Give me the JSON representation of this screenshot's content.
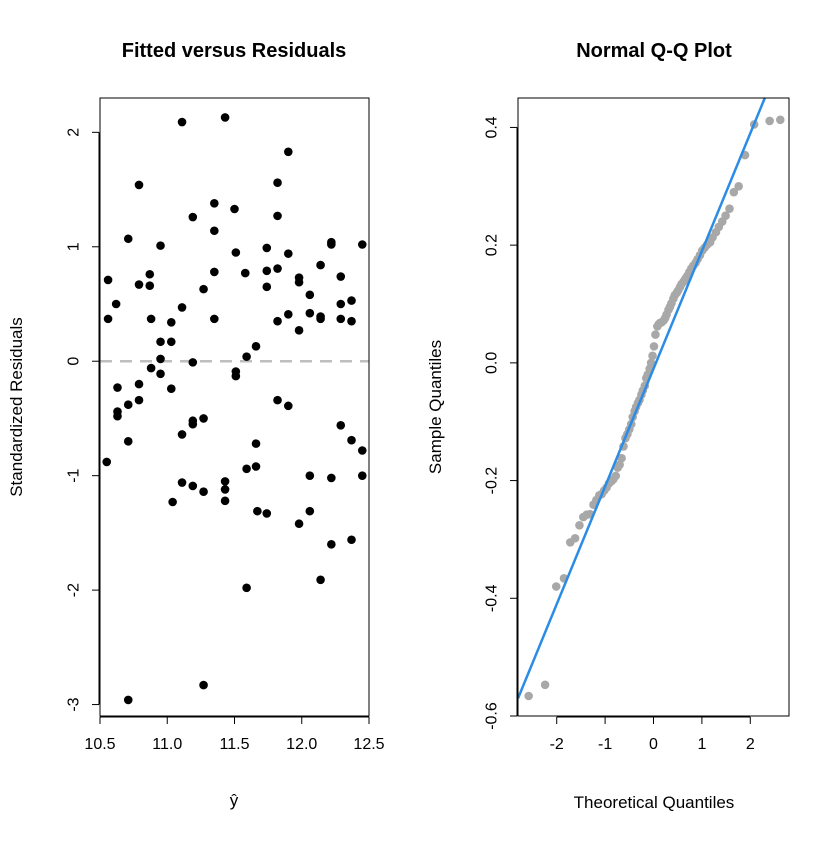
{
  "chart_data": [
    {
      "type": "scatter",
      "title": "Fitted versus Residuals",
      "xlabel": "ŷ",
      "ylabel": "Standardized Residuals",
      "xlim": [
        10.5,
        12.5
      ],
      "ylim": [
        -3.1,
        2.3
      ],
      "x_ticks": [
        10.5,
        11.0,
        11.5,
        12.0,
        12.5
      ],
      "x_tick_labels": [
        "10.5",
        "11.0",
        "11.5",
        "12.0",
        "12.5"
      ],
      "y_ticks": [
        -3,
        -2,
        -1,
        0,
        1,
        2
      ],
      "y_tick_labels": [
        "-3",
        "-2",
        "-1",
        "0",
        "1",
        "2"
      ],
      "reference_line": {
        "y": 0,
        "style": "dashed",
        "color": "#bebebe"
      },
      "point_color": "#000000",
      "points": [
        [
          10.56,
          0.71
        ],
        [
          10.56,
          0.37
        ],
        [
          10.55,
          -0.88
        ],
        [
          10.62,
          0.5
        ],
        [
          10.63,
          -0.23
        ],
        [
          10.63,
          -0.44
        ],
        [
          10.63,
          -0.48
        ],
        [
          10.71,
          1.07
        ],
        [
          10.71,
          -0.38
        ],
        [
          10.71,
          -0.7
        ],
        [
          10.71,
          -2.96
        ],
        [
          10.79,
          1.54
        ],
        [
          10.79,
          0.67
        ],
        [
          10.79,
          -0.2
        ],
        [
          10.79,
          -0.34
        ],
        [
          10.87,
          0.76
        ],
        [
          10.87,
          0.66
        ],
        [
          10.88,
          0.37
        ],
        [
          10.88,
          -0.06
        ],
        [
          10.95,
          1.01
        ],
        [
          10.95,
          0.17
        ],
        [
          10.95,
          0.02
        ],
        [
          10.95,
          -0.11
        ],
        [
          11.03,
          0.34
        ],
        [
          11.03,
          0.17
        ],
        [
          11.03,
          -0.24
        ],
        [
          11.04,
          -1.23
        ],
        [
          11.11,
          2.09
        ],
        [
          11.11,
          0.47
        ],
        [
          11.11,
          -0.64
        ],
        [
          11.11,
          -1.06
        ],
        [
          11.19,
          1.26
        ],
        [
          11.19,
          -0.01
        ],
        [
          11.19,
          -0.52
        ],
        [
          11.19,
          -0.55
        ],
        [
          11.19,
          -1.09
        ],
        [
          11.27,
          0.63
        ],
        [
          11.27,
          -0.5
        ],
        [
          11.27,
          -1.14
        ],
        [
          11.27,
          -2.83
        ],
        [
          11.35,
          1.38
        ],
        [
          11.35,
          1.14
        ],
        [
          11.35,
          0.78
        ],
        [
          11.35,
          0.37
        ],
        [
          11.43,
          2.13
        ],
        [
          11.43,
          -1.05
        ],
        [
          11.43,
          -1.12
        ],
        [
          11.43,
          -1.22
        ],
        [
          11.5,
          1.33
        ],
        [
          11.51,
          0.95
        ],
        [
          11.51,
          -0.09
        ],
        [
          11.51,
          -0.13
        ],
        [
          11.58,
          0.77
        ],
        [
          11.59,
          0.04
        ],
        [
          11.59,
          -0.94
        ],
        [
          11.59,
          -1.98
        ],
        [
          11.66,
          0.13
        ],
        [
          11.66,
          -0.72
        ],
        [
          11.66,
          -0.92
        ],
        [
          11.67,
          -1.31
        ],
        [
          11.74,
          0.99
        ],
        [
          11.74,
          0.79
        ],
        [
          11.74,
          0.65
        ],
        [
          11.74,
          -1.33
        ],
        [
          11.82,
          1.56
        ],
        [
          11.82,
          1.27
        ],
        [
          11.82,
          0.81
        ],
        [
          11.82,
          0.35
        ],
        [
          11.82,
          -0.34
        ],
        [
          11.9,
          1.83
        ],
        [
          11.9,
          0.94
        ],
        [
          11.9,
          0.41
        ],
        [
          11.9,
          -0.39
        ],
        [
          11.98,
          0.73
        ],
        [
          11.98,
          0.69
        ],
        [
          11.98,
          0.27
        ],
        [
          11.98,
          -1.42
        ],
        [
          12.06,
          0.58
        ],
        [
          12.06,
          0.42
        ],
        [
          12.06,
          -1.0
        ],
        [
          12.06,
          -1.31
        ],
        [
          12.14,
          0.84
        ],
        [
          12.14,
          0.39
        ],
        [
          12.14,
          0.37
        ],
        [
          12.14,
          -1.91
        ],
        [
          12.22,
          1.04
        ],
        [
          12.22,
          1.02
        ],
        [
          12.22,
          -1.02
        ],
        [
          12.22,
          -1.6
        ],
        [
          12.29,
          0.74
        ],
        [
          12.29,
          0.5
        ],
        [
          12.29,
          0.37
        ],
        [
          12.29,
          -0.56
        ],
        [
          12.37,
          0.53
        ],
        [
          12.37,
          0.35
        ],
        [
          12.37,
          -0.69
        ],
        [
          12.37,
          -1.56
        ],
        [
          12.45,
          1.02
        ],
        [
          12.45,
          -0.78
        ],
        [
          12.45,
          -1.0
        ]
      ]
    },
    {
      "type": "scatter",
      "title": "Normal Q-Q Plot",
      "xlabel": "Theoretical Quantiles",
      "ylabel": "Sample Quantiles",
      "xlim": [
        -2.8,
        2.8
      ],
      "ylim": [
        -0.6,
        0.45
      ],
      "x_ticks": [
        -2,
        -1,
        0,
        1,
        2
      ],
      "x_tick_labels": [
        "-2",
        "-1",
        "0",
        "1",
        "2"
      ],
      "y_ticks": [
        -0.6,
        -0.4,
        -0.2,
        0.0,
        0.2,
        0.4
      ],
      "y_tick_labels": [
        "-0.6",
        "-0.4",
        "-0.2",
        "0.0",
        "0.2",
        "0.4"
      ],
      "point_color": "#a8a8a8",
      "qq_line": {
        "slope": 0.2,
        "intercept": -0.01,
        "color": "#2b8ce6"
      },
      "points": [
        [
          -2.58,
          -0.566
        ],
        [
          -2.24,
          -0.547
        ],
        [
          -2.01,
          -0.38
        ],
        [
          -1.85,
          -0.366
        ],
        [
          -1.72,
          -0.305
        ],
        [
          -1.62,
          -0.298
        ],
        [
          -1.53,
          -0.276
        ],
        [
          -1.45,
          -0.262
        ],
        [
          -1.38,
          -0.258
        ],
        [
          -1.31,
          -0.257
        ],
        [
          -1.24,
          -0.241
        ],
        [
          -1.18,
          -0.233
        ],
        [
          -1.12,
          -0.225
        ],
        [
          -1.07,
          -0.223
        ],
        [
          -1.02,
          -0.217
        ],
        [
          -0.97,
          -0.212
        ],
        [
          -0.92,
          -0.205
        ],
        [
          -0.87,
          -0.201
        ],
        [
          -0.83,
          -0.198
        ],
        [
          -0.78,
          -0.192
        ],
        [
          -0.74,
          -0.178
        ],
        [
          -0.7,
          -0.173
        ],
        [
          -0.66,
          -0.162
        ],
        [
          -0.62,
          -0.142
        ],
        [
          -0.58,
          -0.128
        ],
        [
          -0.54,
          -0.121
        ],
        [
          -0.5,
          -0.113
        ],
        [
          -0.46,
          -0.104
        ],
        [
          -0.43,
          -0.092
        ],
        [
          -0.39,
          -0.082
        ],
        [
          -0.36,
          -0.075
        ],
        [
          -0.32,
          -0.068
        ],
        [
          -0.29,
          -0.063
        ],
        [
          -0.25,
          -0.054
        ],
        [
          -0.22,
          -0.047
        ],
        [
          -0.18,
          -0.039
        ],
        [
          -0.15,
          -0.026
        ],
        [
          -0.12,
          -0.02
        ],
        [
          -0.08,
          -0.01
        ],
        [
          -0.05,
          0.0
        ],
        [
          -0.02,
          0.012
        ],
        [
          0.01,
          0.028
        ],
        [
          0.04,
          0.048
        ],
        [
          0.08,
          0.062
        ],
        [
          0.11,
          0.066
        ],
        [
          0.14,
          0.068
        ],
        [
          0.17,
          0.069
        ],
        [
          0.21,
          0.072
        ],
        [
          0.24,
          0.076
        ],
        [
          0.27,
          0.082
        ],
        [
          0.31,
          0.09
        ],
        [
          0.34,
          0.095
        ],
        [
          0.37,
          0.101
        ],
        [
          0.41,
          0.109
        ],
        [
          0.44,
          0.115
        ],
        [
          0.48,
          0.119
        ],
        [
          0.51,
          0.123
        ],
        [
          0.55,
          0.129
        ],
        [
          0.58,
          0.134
        ],
        [
          0.62,
          0.138
        ],
        [
          0.66,
          0.143
        ],
        [
          0.7,
          0.148
        ],
        [
          0.74,
          0.154
        ],
        [
          0.78,
          0.16
        ],
        [
          0.82,
          0.165
        ],
        [
          0.87,
          0.17
        ],
        [
          0.91,
          0.176
        ],
        [
          0.96,
          0.183
        ],
        [
          1.01,
          0.191
        ],
        [
          1.06,
          0.196
        ],
        [
          1.11,
          0.201
        ],
        [
          1.17,
          0.205
        ],
        [
          1.22,
          0.213
        ],
        [
          1.29,
          0.222
        ],
        [
          1.35,
          0.231
        ],
        [
          1.42,
          0.24
        ],
        [
          1.49,
          0.25
        ],
        [
          1.57,
          0.262
        ],
        [
          1.66,
          0.29
        ],
        [
          1.76,
          0.3
        ],
        [
          1.89,
          0.353
        ],
        [
          2.08,
          0.405
        ],
        [
          2.4,
          0.411
        ],
        [
          2.62,
          0.413
        ]
      ]
    }
  ]
}
